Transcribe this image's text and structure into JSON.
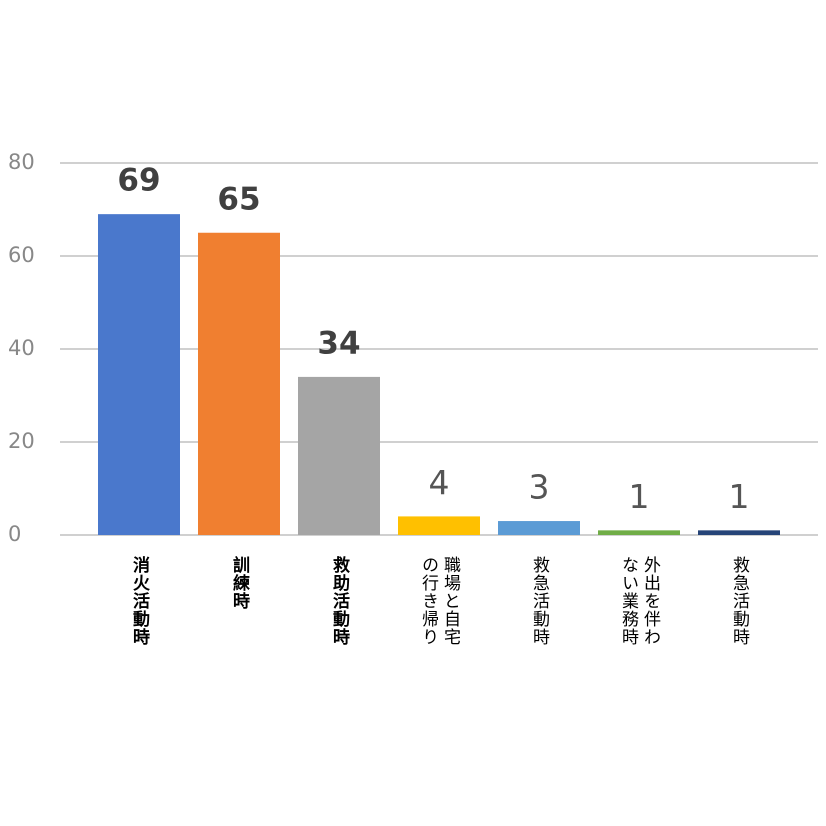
{
  "chart_data": {
    "type": "bar",
    "categories": [
      "消火活動時",
      "訓練時",
      "救助活動時",
      "職場と自宅\nの行き帰り",
      "救急活動時",
      "外出を伴わ\nない業務時",
      "救急活動時"
    ],
    "values": [
      69,
      65,
      34,
      4,
      3,
      1,
      1
    ],
    "colors": [
      "#4a78cc",
      "#f07f30",
      "#a5a5a5",
      "#ffc000",
      "#5b9bd5",
      "#70ad47",
      "#264478"
    ],
    "ylim": [
      0,
      80
    ],
    "yticks": [
      0,
      20,
      40,
      60,
      80
    ],
    "grid": true
  }
}
